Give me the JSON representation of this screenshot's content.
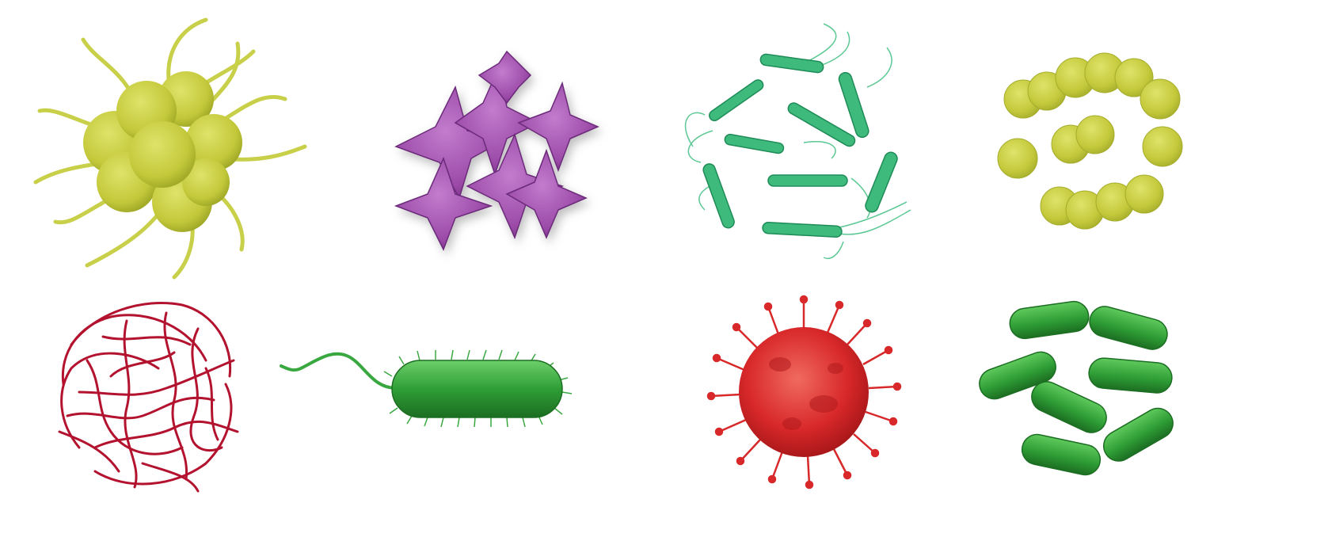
{
  "palette": {
    "background": "#ffffff",
    "yellow_green": "#c3c83a",
    "yellow_green_dark": "#9aa424",
    "purple": "#9b4aa8",
    "purple_dark": "#6c2a7a",
    "teal_green": "#3dba7c",
    "teal_green_dark": "#1f8c58",
    "crimson": "#b3132f",
    "green": "#2f9e36",
    "green_dark": "#1c6e22",
    "red": "#d8282a",
    "red_dark": "#a01416"
  },
  "microbes": [
    {
      "icon": "tentacled-cocci-cluster-icon"
    },
    {
      "icon": "purple-star-cluster-icon"
    },
    {
      "icon": "flagellated-rods-ring-icon"
    },
    {
      "icon": "cocci-chain-icon"
    },
    {
      "icon": "tangled-filaments-icon"
    },
    {
      "icon": "flagellated-bacillus-icon"
    },
    {
      "icon": "spiked-virus-icon"
    },
    {
      "icon": "green-bacilli-group-icon"
    }
  ]
}
